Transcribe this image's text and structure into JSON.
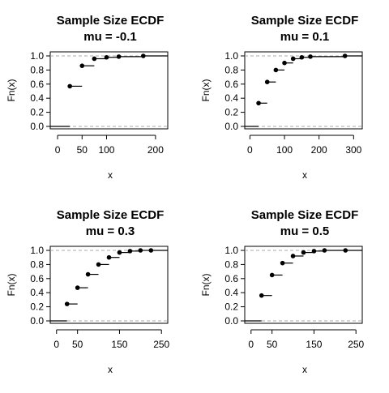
{
  "chart_data": [
    {
      "type": "ecdf",
      "title": "Sample Size ECDF",
      "subtitle": "mu = -0.1",
      "xlabel": "x",
      "ylabel": "Fn(x)",
      "xlim": [
        -15,
        225
      ],
      "ylim": [
        0,
        1
      ],
      "xticks": [
        0,
        50,
        100,
        200
      ],
      "yticks": [
        0.0,
        0.2,
        0.4,
        0.6,
        0.8,
        1.0
      ],
      "ytick_labels": [
        "0.0",
        "0.2",
        "0.4",
        "0.6",
        "0.8",
        "1.0"
      ],
      "points": [
        {
          "x": 25,
          "y": 0.57
        },
        {
          "x": 50,
          "y": 0.86
        },
        {
          "x": 75,
          "y": 0.96
        },
        {
          "x": 100,
          "y": 0.98
        },
        {
          "x": 125,
          "y": 0.99
        },
        {
          "x": 175,
          "y": 1.0
        }
      ],
      "reference_lines": [
        0,
        1
      ],
      "grid": false
    },
    {
      "type": "ecdf",
      "title": "Sample Size ECDF",
      "subtitle": "mu = 0.1",
      "xlabel": "x",
      "ylabel": "Fn(x)",
      "xlim": [
        -15,
        325
      ],
      "ylim": [
        0,
        1
      ],
      "xticks": [
        0,
        100,
        200,
        300
      ],
      "yticks": [
        0.0,
        0.2,
        0.4,
        0.6,
        0.8,
        1.0
      ],
      "ytick_labels": [
        "0.0",
        "0.2",
        "0.4",
        "0.6",
        "0.8",
        "1.0"
      ],
      "points": [
        {
          "x": 25,
          "y": 0.33
        },
        {
          "x": 50,
          "y": 0.63
        },
        {
          "x": 75,
          "y": 0.8
        },
        {
          "x": 100,
          "y": 0.9
        },
        {
          "x": 125,
          "y": 0.96
        },
        {
          "x": 150,
          "y": 0.98
        },
        {
          "x": 175,
          "y": 0.99
        },
        {
          "x": 275,
          "y": 1.0
        }
      ],
      "reference_lines": [
        0,
        1
      ],
      "grid": false
    },
    {
      "type": "ecdf",
      "title": "Sample Size ECDF",
      "subtitle": "mu = 0.3",
      "xlabel": "x",
      "ylabel": "Fn(x)",
      "xlim": [
        -15,
        265
      ],
      "ylim": [
        0,
        1
      ],
      "xticks": [
        0,
        50,
        150,
        250
      ],
      "yticks": [
        0.0,
        0.2,
        0.4,
        0.6,
        0.8,
        1.0
      ],
      "ytick_labels": [
        "0.0",
        "0.2",
        "0.4",
        "0.6",
        "0.8",
        "1.0"
      ],
      "points": [
        {
          "x": 25,
          "y": 0.24
        },
        {
          "x": 50,
          "y": 0.47
        },
        {
          "x": 75,
          "y": 0.66
        },
        {
          "x": 100,
          "y": 0.8
        },
        {
          "x": 125,
          "y": 0.9
        },
        {
          "x": 150,
          "y": 0.97
        },
        {
          "x": 175,
          "y": 0.99
        },
        {
          "x": 200,
          "y": 1.0
        },
        {
          "x": 225,
          "y": 1.0
        }
      ],
      "reference_lines": [
        0,
        1
      ],
      "grid": false
    },
    {
      "type": "ecdf",
      "title": "Sample Size ECDF",
      "subtitle": "mu = 0.5",
      "xlabel": "x",
      "ylabel": "Fn(x)",
      "xlim": [
        -15,
        265
      ],
      "ylim": [
        0,
        1
      ],
      "xticks": [
        0,
        50,
        150,
        250
      ],
      "yticks": [
        0.0,
        0.2,
        0.4,
        0.6,
        0.8,
        1.0
      ],
      "ytick_labels": [
        "0.0",
        "0.2",
        "0.4",
        "0.6",
        "0.8",
        "1.0"
      ],
      "points": [
        {
          "x": 25,
          "y": 0.36
        },
        {
          "x": 50,
          "y": 0.65
        },
        {
          "x": 75,
          "y": 0.82
        },
        {
          "x": 100,
          "y": 0.92
        },
        {
          "x": 125,
          "y": 0.97
        },
        {
          "x": 150,
          "y": 0.99
        },
        {
          "x": 175,
          "y": 1.0
        },
        {
          "x": 225,
          "y": 1.0
        }
      ],
      "reference_lines": [
        0,
        1
      ],
      "grid": false
    }
  ],
  "colors": {
    "axis": "#000000",
    "reference_line": "#aaaaaa",
    "step": "#000000",
    "point": "#000000"
  }
}
